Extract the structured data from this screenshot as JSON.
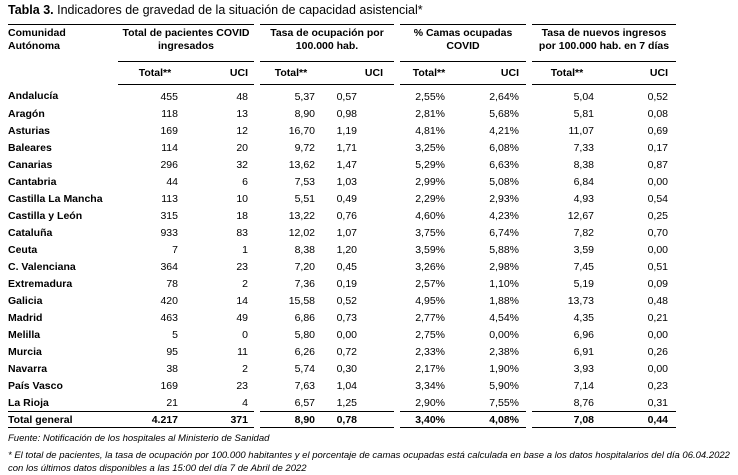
{
  "title": {
    "label": "Tabla 3.",
    "text": "Indicadores de gravedad de la situación de capacidad asistencial*"
  },
  "table": {
    "header": {
      "region": "Comunidad Autónoma",
      "groups": [
        "Total de pacientes COVID ingresados",
        "Tasa de ocupación por 100.000 hab.",
        "% Camas ocupadas COVID",
        "Tasa de nuevos ingresos por 100.000 hab. en 7 días"
      ],
      "subheaders": [
        "Total**",
        "UCI",
        "Total**",
        "UCI",
        "Total**",
        "UCI",
        "Total**",
        "UCI"
      ]
    },
    "rows": [
      [
        "Andalucía",
        "455",
        "48",
        "5,37",
        "0,57",
        "2,55%",
        "2,64%",
        "5,04",
        "0,52"
      ],
      [
        "Aragón",
        "118",
        "13",
        "8,90",
        "0,98",
        "2,81%",
        "5,68%",
        "5,81",
        "0,08"
      ],
      [
        "Asturias",
        "169",
        "12",
        "16,70",
        "1,19",
        "4,81%",
        "4,21%",
        "11,07",
        "0,69"
      ],
      [
        "Baleares",
        "114",
        "20",
        "9,72",
        "1,71",
        "3,25%",
        "6,08%",
        "7,33",
        "0,17"
      ],
      [
        "Canarias",
        "296",
        "32",
        "13,62",
        "1,47",
        "5,29%",
        "6,63%",
        "8,38",
        "0,87"
      ],
      [
        "Cantabria",
        "44",
        "6",
        "7,53",
        "1,03",
        "2,99%",
        "5,08%",
        "6,84",
        "0,00"
      ],
      [
        "Castilla La Mancha",
        "113",
        "10",
        "5,51",
        "0,49",
        "2,29%",
        "2,93%",
        "4,93",
        "0,54"
      ],
      [
        "Castilla y León",
        "315",
        "18",
        "13,22",
        "0,76",
        "4,60%",
        "4,23%",
        "12,67",
        "0,25"
      ],
      [
        "Cataluña",
        "933",
        "83",
        "12,02",
        "1,07",
        "3,75%",
        "6,74%",
        "7,82",
        "0,70"
      ],
      [
        "Ceuta",
        "7",
        "1",
        "8,38",
        "1,20",
        "3,59%",
        "5,88%",
        "3,59",
        "0,00"
      ],
      [
        "C. Valenciana",
        "364",
        "23",
        "7,20",
        "0,45",
        "3,26%",
        "2,98%",
        "7,45",
        "0,51"
      ],
      [
        "Extremadura",
        "78",
        "2",
        "7,36",
        "0,19",
        "2,57%",
        "1,10%",
        "5,19",
        "0,09"
      ],
      [
        "Galicia",
        "420",
        "14",
        "15,58",
        "0,52",
        "4,95%",
        "1,88%",
        "13,73",
        "0,48"
      ],
      [
        "Madrid",
        "463",
        "49",
        "6,86",
        "0,73",
        "2,77%",
        "4,54%",
        "4,35",
        "0,21"
      ],
      [
        "Melilla",
        "5",
        "0",
        "5,80",
        "0,00",
        "2,75%",
        "0,00%",
        "6,96",
        "0,00"
      ],
      [
        "Murcia",
        "95",
        "11",
        "6,26",
        "0,72",
        "2,33%",
        "2,38%",
        "6,91",
        "0,26"
      ],
      [
        "Navarra",
        "38",
        "2",
        "5,74",
        "0,30",
        "2,17%",
        "1,90%",
        "3,93",
        "0,00"
      ],
      [
        "País Vasco",
        "169",
        "23",
        "7,63",
        "1,04",
        "3,34%",
        "5,90%",
        "7,14",
        "0,23"
      ],
      [
        "La Rioja",
        "21",
        "4",
        "6,57",
        "1,25",
        "2,90%",
        "7,55%",
        "8,76",
        "0,31"
      ]
    ],
    "total": [
      "Total general",
      "4.217",
      "371",
      "8,90",
      "0,78",
      "3,40%",
      "4,08%",
      "7,08",
      "0,44"
    ]
  },
  "notes": {
    "source": "Fuente: Notificación de los hospitales al Ministerio de Sanidad",
    "footnote": "* El total de pacientes, la tasa de ocupación por 100.000 habitantes y el porcentaje de camas ocupadas está calculada en base a los datos hospitalarios del día 06.04.2022 con los últimos datos disponibles a las 15:00 del día 7 de Abril de 2022"
  }
}
